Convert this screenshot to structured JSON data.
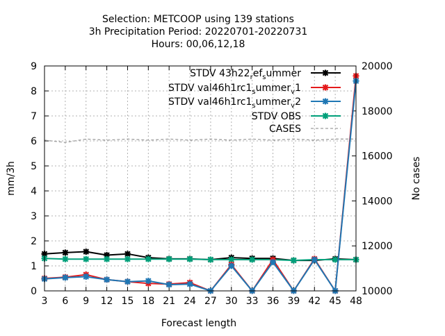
{
  "chart_data": {
    "type": "line",
    "title_lines": [
      "Selection: METCOOP using   139 stations",
      "3h Precipitation   Period: 20220701-20220731",
      "Hours:  00,06,12,18"
    ],
    "xlabel": "Forecast length",
    "ylabel": "mm/3h",
    "y2label": "No cases",
    "x": [
      3,
      6,
      9,
      12,
      15,
      18,
      21,
      24,
      27,
      30,
      33,
      36,
      39,
      42,
      45,
      48
    ],
    "ylim": [
      0,
      9
    ],
    "y2lim": [
      10000,
      20000
    ],
    "yticks": [
      "0",
      "1",
      "2",
      "3",
      "4",
      "5",
      "6",
      "7",
      "8",
      "9"
    ],
    "y2ticks": [
      "10000",
      "12000",
      "14000",
      "16000",
      "18000",
      "20000"
    ],
    "grid": true,
    "legend_position": "top-right",
    "series": [
      {
        "legend": {
          "main": "STDV 43h22",
          "parts": [
            {
              "t": "r",
              "d": "sub"
            },
            {
              "t": "ef",
              "d": "base"
            },
            {
              "t": "s",
              "d": "sub"
            },
            {
              "t": "ummer",
              "d": "base"
            }
          ]
        },
        "color": "#000000",
        "axis": "y",
        "dash": false,
        "marker": "x",
        "values": [
          1.48,
          1.53,
          1.57,
          1.43,
          1.48,
          1.33,
          1.28,
          1.28,
          1.25,
          1.33,
          1.3,
          1.3,
          1.22,
          1.22,
          1.28,
          1.25
        ]
      },
      {
        "legend": {
          "main": "STDV val46h1rc1",
          "parts": [
            {
              "t": "s",
              "d": "sub"
            },
            {
              "t": "ummer",
              "d": "base"
            },
            {
              "t": "v",
              "d": "sub"
            },
            {
              "t": "1",
              "d": "base"
            }
          ]
        },
        "color": "#e41a1c",
        "axis": "y",
        "dash": false,
        "marker": "x",
        "values": [
          0.5,
          0.55,
          0.65,
          0.45,
          0.37,
          0.3,
          0.27,
          0.33,
          0.0,
          1.05,
          0.0,
          1.25,
          0.0,
          1.28,
          0.0,
          8.6
        ]
      },
      {
        "legend": {
          "main": "STDV val46h1rc1",
          "parts": [
            {
              "t": "s",
              "d": "sub"
            },
            {
              "t": "ummer",
              "d": "base"
            },
            {
              "t": "v",
              "d": "sub"
            },
            {
              "t": "2",
              "d": "base"
            }
          ]
        },
        "color": "#1f77b4",
        "axis": "y",
        "dash": false,
        "marker": "x",
        "values": [
          0.48,
          0.53,
          0.57,
          0.45,
          0.37,
          0.4,
          0.25,
          0.27,
          0.0,
          1.0,
          0.0,
          1.15,
          0.0,
          1.25,
          0.0,
          8.4
        ]
      },
      {
        "legend": {
          "main": "STDV OBS",
          "parts": []
        },
        "color": "#00a07a",
        "axis": "y",
        "dash": false,
        "marker": "x",
        "values": [
          1.3,
          1.27,
          1.27,
          1.27,
          1.27,
          1.27,
          1.27,
          1.27,
          1.25,
          1.25,
          1.25,
          1.25,
          1.22,
          1.25,
          1.25,
          1.25
        ]
      },
      {
        "legend": {
          "main": "CASES",
          "parts": []
        },
        "color": "#9e9e9e",
        "axis": "y2",
        "dash": true,
        "marker": "none",
        "values": [
          16700,
          16600,
          16750,
          16700,
          16750,
          16700,
          16750,
          16700,
          16750,
          16700,
          16750,
          16700,
          16750,
          16700,
          16750,
          16750
        ]
      }
    ]
  }
}
